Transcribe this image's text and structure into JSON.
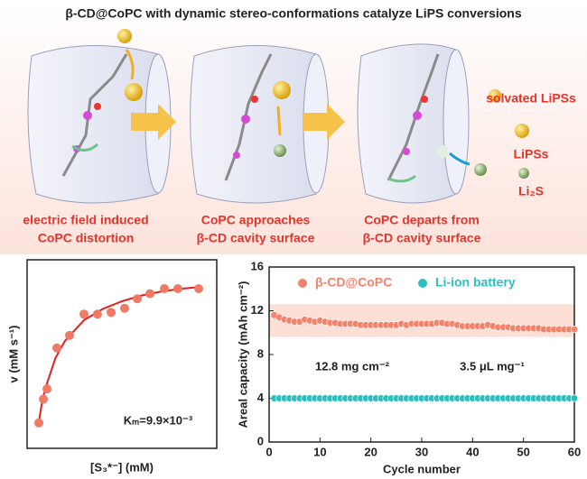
{
  "header": {
    "title": "β-CD@CoPC with dynamic stereo-conformations catalyze LiPS conversions"
  },
  "steps": [
    {
      "line1": "electric field induced",
      "line2": "CoPC distortion"
    },
    {
      "line1": "CoPC approaches",
      "line2": "β-CD cavity surface"
    },
    {
      "line1": "CoPC departs from",
      "line2": "β-CD cavity surface"
    }
  ],
  "legend": {
    "solvated": "solvated LiPSs",
    "lips": "LiPSs",
    "li2s": "Li₂S"
  },
  "chart_data": [
    {
      "type": "scatter",
      "y_label": "v (mM s⁻¹)",
      "x_label": "[S₃*⁻] (mM)",
      "annotation": "Kₘ=9.9×10⁻³",
      "xlim": [
        0,
        10
      ],
      "ylim": [
        0,
        10
      ],
      "color": "#f07a66",
      "fit_color": "#e02020",
      "x": [
        0.62,
        0.86,
        1.05,
        1.57,
        2.24,
        3.0,
        3.71,
        4.43,
        5.14,
        5.81,
        6.48,
        7.24,
        7.95,
        9.05
      ],
      "values": [
        1.35,
        2.61,
        3.15,
        5.32,
        5.99,
        7.12,
        7.12,
        7.21,
        7.43,
        7.93,
        8.2,
        8.47,
        8.47,
        8.47
      ],
      "fit_x": [
        0.6,
        0.8,
        1.0,
        1.5,
        2,
        3,
        4,
        5,
        6,
        7,
        8,
        9.05
      ],
      "fit_values": [
        1.3,
        2.5,
        3.3,
        4.8,
        5.7,
        6.8,
        7.4,
        7.8,
        8.1,
        8.3,
        8.45,
        8.55
      ]
    },
    {
      "type": "scatter",
      "y_label": "Areal capacity (mAh cm⁻²)",
      "x_label": "Cycle number",
      "xlim": [
        0,
        60
      ],
      "ylim": [
        0,
        16
      ],
      "xticks": [
        0,
        10,
        20,
        30,
        40,
        50,
        60
      ],
      "yticks": [
        0,
        4,
        8,
        12,
        16
      ],
      "band": [
        9.6,
        12.6
      ],
      "band_color": "#fbd3c4",
      "annotations": [
        "12.8 mg cm⁻²",
        "3.5 μL mg⁻¹"
      ],
      "x": [
        1,
        2,
        3,
        4,
        5,
        6,
        7,
        8,
        9,
        10,
        11,
        12,
        13,
        14,
        15,
        16,
        17,
        18,
        19,
        20,
        21,
        22,
        23,
        24,
        25,
        26,
        27,
        28,
        29,
        30,
        31,
        32,
        33,
        34,
        35,
        36,
        37,
        38,
        39,
        40,
        41,
        42,
        43,
        44,
        45,
        46,
        47,
        48,
        49,
        50,
        51,
        52,
        53,
        54,
        55,
        56,
        57,
        58,
        59,
        60
      ],
      "series": [
        {
          "name": "β-CD@CoPC",
          "color": "#f4826b",
          "values": [
            11.6,
            11.4,
            11.2,
            11.1,
            11.0,
            11.0,
            11.2,
            11.1,
            11.0,
            11.1,
            11.0,
            10.9,
            10.9,
            10.8,
            10.8,
            10.8,
            10.8,
            10.7,
            10.7,
            10.7,
            10.7,
            10.7,
            10.7,
            10.7,
            10.7,
            10.8,
            10.7,
            10.8,
            10.8,
            10.8,
            10.8,
            10.8,
            10.9,
            10.9,
            10.8,
            10.8,
            10.7,
            10.6,
            10.6,
            10.6,
            10.6,
            10.6,
            10.7,
            10.6,
            10.5,
            10.5,
            10.5,
            10.4,
            10.4,
            10.4,
            10.4,
            10.4,
            10.4,
            10.3,
            10.3,
            10.3,
            10.3,
            10.3,
            10.3,
            10.3
          ]
        },
        {
          "name": "Li-ion battery",
          "color": "#2bbfc0",
          "values": [
            4.0,
            4.0,
            4.0,
            4.0,
            4.0,
            4.0,
            4.0,
            4.0,
            4.0,
            4.0,
            4.0,
            4.0,
            4.0,
            4.0,
            4.0,
            4.0,
            4.0,
            4.0,
            4.0,
            4.0,
            4.0,
            4.0,
            4.0,
            4.0,
            4.0,
            4.0,
            4.0,
            4.0,
            4.0,
            4.0,
            4.0,
            4.0,
            4.0,
            4.0,
            4.0,
            4.0,
            4.0,
            4.0,
            4.0,
            4.0,
            4.0,
            4.0,
            4.0,
            4.0,
            4.0,
            4.0,
            4.0,
            4.0,
            4.0,
            4.0,
            4.0,
            4.0,
            4.0,
            4.0,
            4.0,
            4.0,
            4.0,
            4.0,
            4.0,
            4.0
          ]
        }
      ]
    }
  ]
}
